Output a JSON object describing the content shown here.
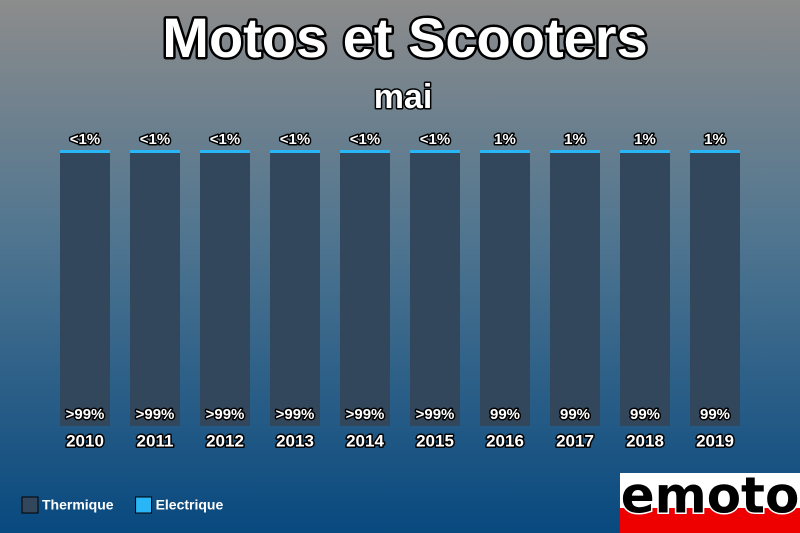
{
  "chart_data": {
    "type": "stacked_bar",
    "title": "Motos et Scooters",
    "subtitle": "mai",
    "categories": [
      "2010",
      "2011",
      "2012",
      "2013",
      "2014",
      "2015",
      "2016",
      "2017",
      "2018",
      "2019"
    ],
    "series": [
      {
        "name": "Thermique",
        "color": "#33475c",
        "values": [
          99.6,
          99.6,
          99.6,
          99.6,
          99.6,
          99.5,
          99,
          99,
          99,
          99
        ],
        "value_labels": [
          ">99%",
          ">99%",
          ">99%",
          ">99%",
          ">99%",
          ">99%",
          "99%",
          "99%",
          "99%",
          "99%"
        ]
      },
      {
        "name": "Electrique",
        "color": "#29b6f6",
        "values": [
          0.4,
          0.4,
          0.4,
          0.4,
          0.4,
          0.5,
          1,
          1,
          1,
          1
        ],
        "value_labels": [
          "<1%",
          "<1%",
          "<1%",
          "<1%",
          "<1%",
          "<1%",
          "1%",
          "1%",
          "1%",
          "1%"
        ]
      }
    ],
    "legend": "bottom-left"
  },
  "logo": "emoto"
}
